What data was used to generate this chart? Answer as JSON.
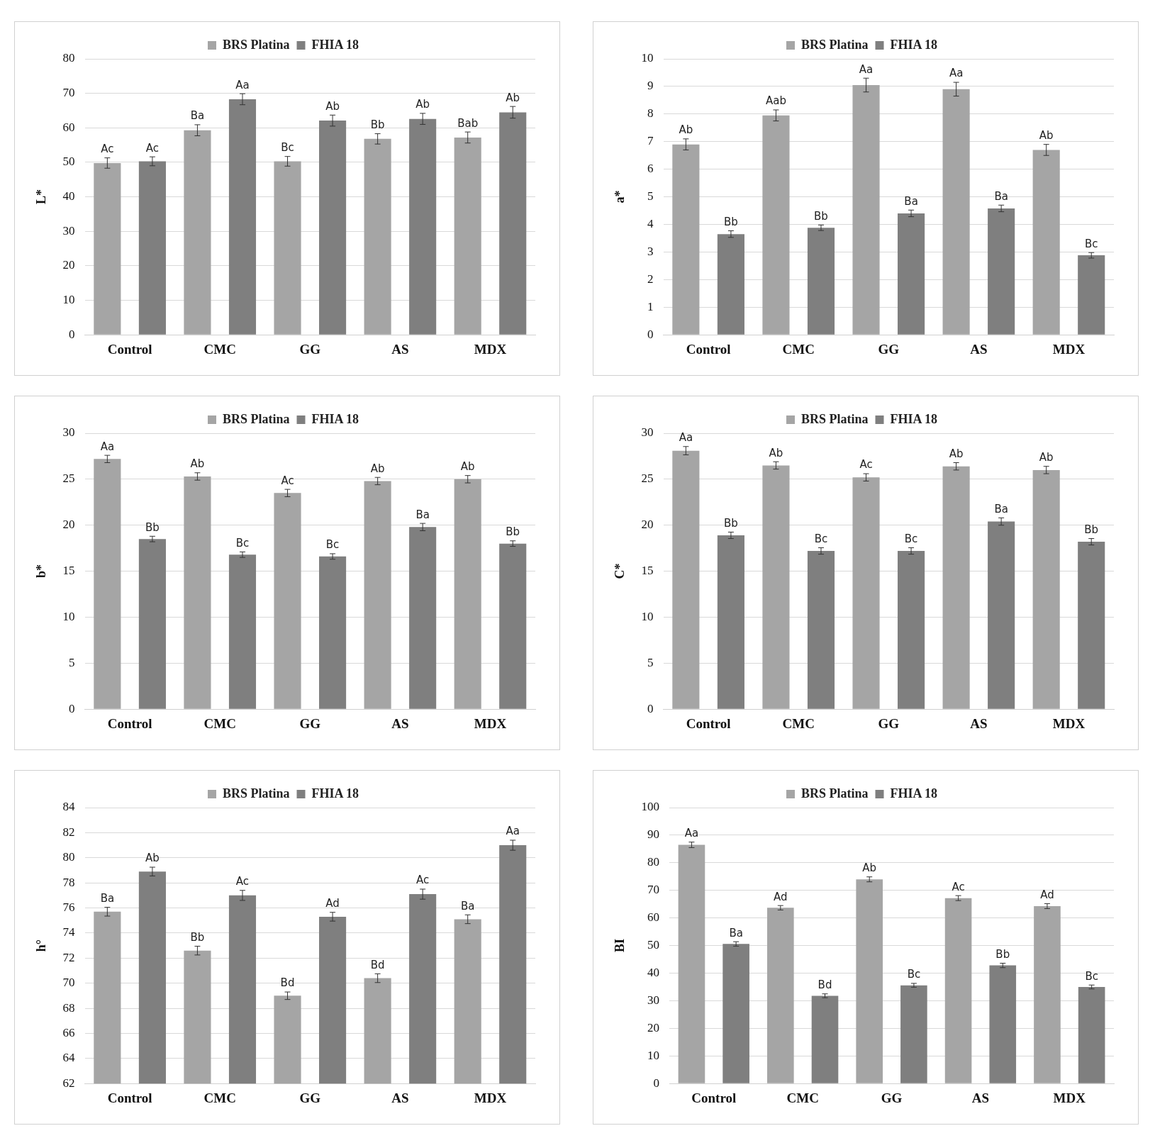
{
  "chart_data": [
    {
      "type": "bar",
      "ylabel": "L*",
      "categories": [
        "Control",
        "CMC",
        "GG",
        "AS",
        "MDX"
      ],
      "ylim": [
        0,
        80
      ],
      "yticks": [
        0,
        10,
        20,
        30,
        40,
        50,
        60,
        70,
        80
      ],
      "grid": "y",
      "legend": "top",
      "series": [
        {
          "name": "BRS Platina",
          "color": "#a5a5a5",
          "values": [
            49.8,
            59.3,
            50.3,
            56.8,
            57.2
          ],
          "errors": [
            1.5,
            1.6,
            1.4,
            1.5,
            1.6
          ],
          "value_labels": [
            "Ac",
            "Ba",
            "Bc",
            "Bb",
            "Bab"
          ]
        },
        {
          "name": "FHIA 18",
          "color": "#7f7f7f",
          "values": [
            50.3,
            68.3,
            62.1,
            62.6,
            64.5
          ],
          "errors": [
            1.3,
            1.6,
            1.6,
            1.6,
            1.7
          ],
          "value_labels": [
            "Ac",
            "Aa",
            "Ab",
            "Ab",
            "Ab"
          ]
        }
      ]
    },
    {
      "type": "bar",
      "ylabel": "a*",
      "categories": [
        "Control",
        "CMC",
        "GG",
        "AS",
        "MDX"
      ],
      "ylim": [
        0,
        10
      ],
      "yticks": [
        0,
        1,
        2,
        3,
        4,
        5,
        6,
        7,
        8,
        9,
        10
      ],
      "grid": "y",
      "legend": "top",
      "series": [
        {
          "name": "BRS Platina",
          "color": "#a5a5a5",
          "values": [
            6.9,
            7.95,
            9.05,
            8.9,
            6.7
          ],
          "errors": [
            0.2,
            0.2,
            0.25,
            0.25,
            0.2
          ],
          "value_labels": [
            "Ab",
            "Aab",
            "Aa",
            "Aa",
            "Ab"
          ]
        },
        {
          "name": "FHIA 18",
          "color": "#7f7f7f",
          "values": [
            3.65,
            3.88,
            4.4,
            4.58,
            2.88
          ],
          "errors": [
            0.12,
            0.1,
            0.12,
            0.12,
            0.1
          ],
          "value_labels": [
            "Bb",
            "Bb",
            "Ba",
            "Ba",
            "Bc"
          ]
        }
      ]
    },
    {
      "type": "bar",
      "ylabel": "b*",
      "categories": [
        "Control",
        "CMC",
        "GG",
        "AS",
        "MDX"
      ],
      "ylim": [
        0,
        30
      ],
      "yticks": [
        0,
        5,
        10,
        15,
        20,
        25,
        30
      ],
      "grid": "y",
      "legend": "top",
      "series": [
        {
          "name": "BRS Platina",
          "color": "#a5a5a5",
          "values": [
            27.2,
            25.3,
            23.5,
            24.8,
            25.0
          ],
          "errors": [
            0.4,
            0.4,
            0.4,
            0.4,
            0.4
          ],
          "value_labels": [
            "Aa",
            "Ab",
            "Ac",
            "Ab",
            "Ab"
          ]
        },
        {
          "name": "FHIA 18",
          "color": "#7f7f7f",
          "values": [
            18.5,
            16.8,
            16.6,
            19.8,
            18.0
          ],
          "errors": [
            0.3,
            0.3,
            0.3,
            0.4,
            0.3
          ],
          "value_labels": [
            "Bb",
            "Bc",
            "Bc",
            "Ba",
            "Bb"
          ]
        }
      ]
    },
    {
      "type": "bar",
      "ylabel": "C*",
      "categories": [
        "Control",
        "CMC",
        "GG",
        "AS",
        "MDX"
      ],
      "ylim": [
        0,
        30
      ],
      "yticks": [
        0,
        5,
        10,
        15,
        20,
        25,
        30
      ],
      "grid": "y",
      "legend": "top",
      "series": [
        {
          "name": "BRS Platina",
          "color": "#a5a5a5",
          "values": [
            28.1,
            26.5,
            25.2,
            26.4,
            26.0
          ],
          "errors": [
            0.45,
            0.4,
            0.4,
            0.4,
            0.4
          ],
          "value_labels": [
            "Aa",
            "Ab",
            "Ac",
            "Ab",
            "Ab"
          ]
        },
        {
          "name": "FHIA 18",
          "color": "#7f7f7f",
          "values": [
            18.9,
            17.2,
            17.2,
            20.4,
            18.2
          ],
          "errors": [
            0.35,
            0.35,
            0.35,
            0.4,
            0.35
          ],
          "value_labels": [
            "Bb",
            "Bc",
            "Bc",
            "Ba",
            "Bb"
          ]
        }
      ]
    },
    {
      "type": "bar",
      "ylabel": "h°",
      "categories": [
        "Control",
        "CMC",
        "GG",
        "AS",
        "MDX"
      ],
      "ylim": [
        62,
        84
      ],
      "yticks": [
        62,
        64,
        66,
        68,
        70,
        72,
        74,
        76,
        78,
        80,
        82,
        84
      ],
      "grid": "y",
      "legend": "top",
      "series": [
        {
          "name": "BRS Platina",
          "color": "#a5a5a5",
          "values": [
            75.7,
            72.6,
            69.0,
            70.4,
            75.1
          ],
          "errors": [
            0.35,
            0.35,
            0.3,
            0.35,
            0.35
          ],
          "value_labels": [
            "Ba",
            "Bb",
            "Bd",
            "Bd",
            "Ba"
          ]
        },
        {
          "name": "FHIA 18",
          "color": "#7f7f7f",
          "values": [
            78.9,
            77.0,
            75.3,
            77.1,
            81.0
          ],
          "errors": [
            0.35,
            0.4,
            0.35,
            0.4,
            0.4
          ],
          "value_labels": [
            "Ab",
            "Ac",
            "Ad",
            "Ac",
            "Aa"
          ]
        }
      ]
    },
    {
      "type": "bar",
      "ylabel": "BI",
      "categories": [
        "Control",
        "CMC",
        "GG",
        "AS",
        "MDX"
      ],
      "ylim": [
        0,
        100
      ],
      "yticks": [
        0,
        10,
        20,
        30,
        40,
        50,
        60,
        70,
        80,
        90,
        100
      ],
      "grid": "y",
      "legend": "top",
      "series": [
        {
          "name": "BRS Platina",
          "color": "#a5a5a5",
          "values": [
            86.5,
            63.7,
            74.0,
            67.2,
            64.3
          ],
          "errors": [
            1,
            0.8,
            0.9,
            0.9,
            0.9
          ],
          "value_labels": [
            "Aa",
            "Ad",
            "Ab",
            "Ac",
            "Ad"
          ]
        },
        {
          "name": "FHIA 18",
          "color": "#7f7f7f",
          "values": [
            50.6,
            31.8,
            35.6,
            42.8,
            35.0
          ],
          "errors": [
            0.8,
            0.7,
            0.7,
            0.8,
            0.7
          ],
          "value_labels": [
            "Ba",
            "Bd",
            "Bc",
            "Bb",
            "Bc"
          ]
        }
      ]
    }
  ]
}
